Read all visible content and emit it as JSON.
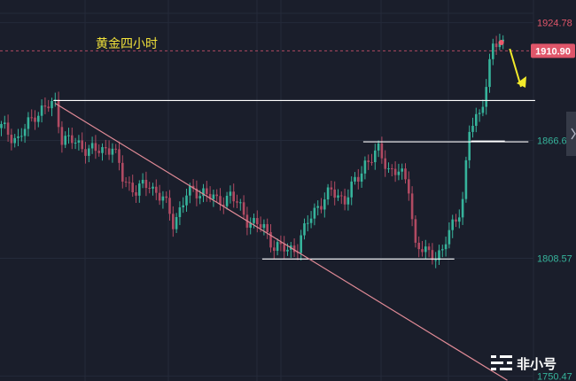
{
  "chart_data": {
    "type": "candlestick",
    "title": "黄金四小时",
    "ylim": [
      1748,
      1936
    ],
    "y_ticks": [
      1924.78,
      1866.68,
      1808.57,
      1750.47
    ],
    "y_tick_labels": [
      "1924.78",
      "1866.68",
      "1808.57",
      "1750.47"
    ],
    "current_price": 1910.9,
    "current_price_label": "1910.90",
    "colors": {
      "up": "#36b39b",
      "down": "#b04a62",
      "background": "#1a1e2b",
      "grid": "#242a3a",
      "trendline": "#e08a96",
      "arrow": "#f2ea2b",
      "price_tag": "#e0566a"
    },
    "candle_count": 150,
    "candles": [],
    "support_resistance_levels": [
      1886.4,
      1866.4,
      1866.0,
      1808.2
    ],
    "trendline": {
      "from": {
        "index": 16,
        "price": 1885.0
      },
      "to": {
        "index": 145,
        "price": 1750.5
      }
    },
    "annotation_arrow": "up"
  },
  "watermark": {
    "text": "非小号"
  }
}
